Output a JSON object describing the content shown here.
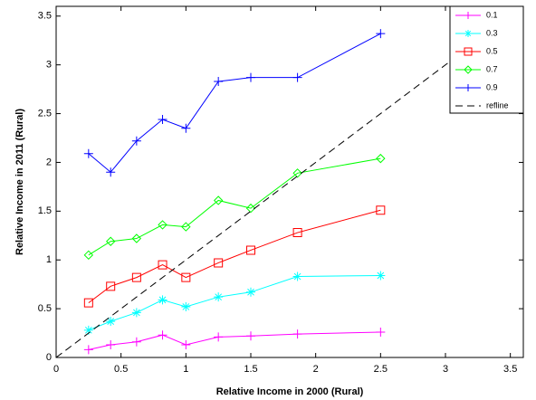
{
  "chart_data": {
    "type": "line",
    "x_label": "Relative Income in 2000 (Rural)",
    "y_label": "Relative Income in 2011 (Rural)",
    "x": [
      0.25,
      0.42,
      0.62,
      0.82,
      1.0,
      1.25,
      1.5,
      1.86,
      2.5
    ],
    "series": [
      {
        "name": "0.1",
        "color": "#ff00ff",
        "marker": "plus",
        "values": [
          0.08,
          0.13,
          0.16,
          0.23,
          0.13,
          0.21,
          0.22,
          0.24,
          0.26
        ]
      },
      {
        "name": "0.3",
        "color": "#00ffff",
        "marker": "star",
        "values": [
          0.28,
          0.37,
          0.46,
          0.59,
          0.52,
          0.62,
          0.67,
          0.83,
          0.84
        ]
      },
      {
        "name": "0.5",
        "color": "#ff0000",
        "marker": "square",
        "values": [
          0.56,
          0.73,
          0.82,
          0.95,
          0.82,
          0.97,
          1.1,
          1.28,
          1.51
        ]
      },
      {
        "name": "0.7",
        "color": "#00ff00",
        "marker": "diamond",
        "values": [
          1.05,
          1.19,
          1.22,
          1.36,
          1.34,
          1.61,
          1.53,
          1.89,
          2.04
        ]
      },
      {
        "name": "0.9",
        "color": "#0000ff",
        "marker": "plus",
        "values": [
          2.09,
          1.9,
          2.22,
          2.44,
          2.35,
          2.83,
          2.87,
          2.87,
          3.32
        ]
      },
      {
        "name": "refline",
        "color": "#000000",
        "dashed": true,
        "x": [
          0,
          3.6
        ],
        "values": [
          0,
          3.6
        ]
      }
    ],
    "xlim": [
      0,
      3.6
    ],
    "ylim": [
      0,
      3.6
    ],
    "xticks": [
      0,
      0.5,
      1,
      1.5,
      2,
      2.5,
      3,
      3.5
    ],
    "yticks": [
      0,
      0.5,
      1,
      1.5,
      2,
      2.5,
      3,
      3.5
    ],
    "grid": false,
    "legend": "top-right"
  }
}
